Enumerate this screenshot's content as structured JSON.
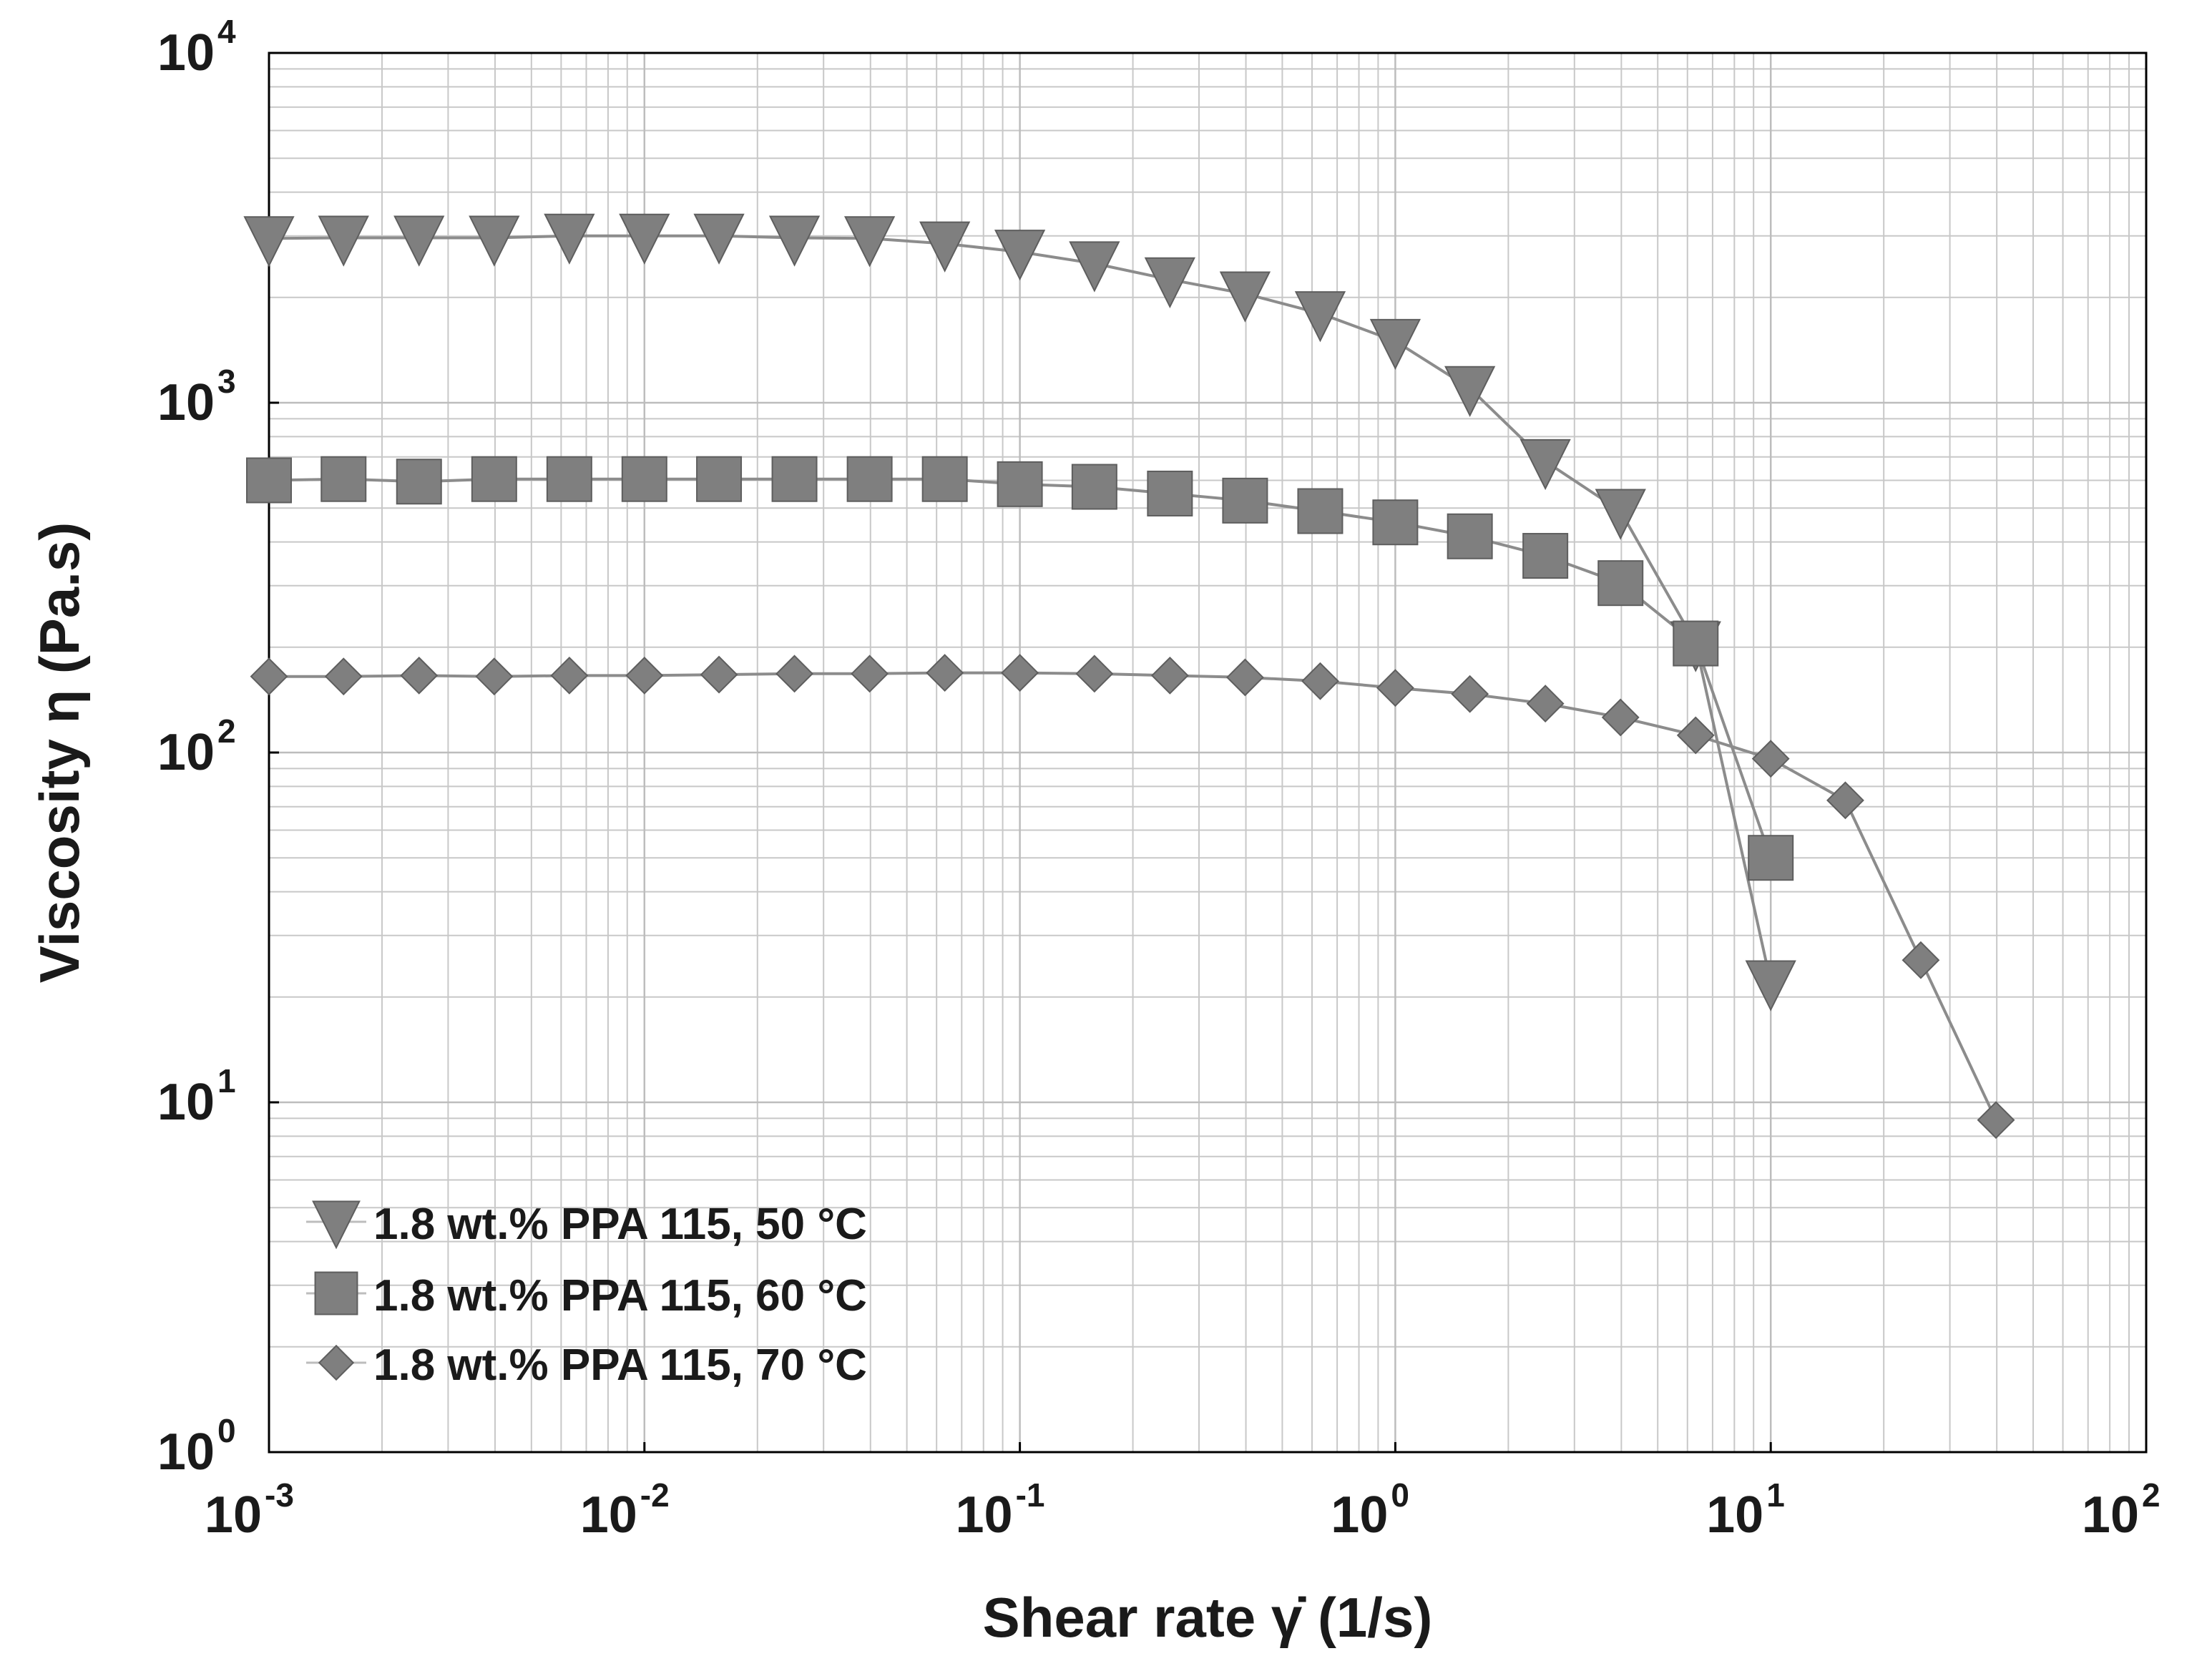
{
  "chart_data": {
    "type": "line",
    "scale": "log-log",
    "xlabel": "Shear rate  γ̇  (1/s)",
    "ylabel": "Viscosity η (Pa.s)",
    "xlim": [
      0.001,
      100
    ],
    "ylim": [
      1,
      10000
    ],
    "grid": true,
    "legend_position": "bottom-left",
    "x_ticks": [
      {
        "value": 0.001,
        "base": "10",
        "exp": "-3"
      },
      {
        "value": 0.01,
        "base": "10",
        "exp": "-2"
      },
      {
        "value": 0.1,
        "base": "10",
        "exp": "-1"
      },
      {
        "value": 1,
        "base": "10",
        "exp": "0"
      },
      {
        "value": 10,
        "base": "10",
        "exp": "1"
      },
      {
        "value": 100,
        "base": "10",
        "exp": "2"
      }
    ],
    "y_ticks": [
      {
        "value": 1,
        "base": "10",
        "exp": "0"
      },
      {
        "value": 10,
        "base": "10",
        "exp": "1"
      },
      {
        "value": 100,
        "base": "10",
        "exp": "2"
      },
      {
        "value": 1000,
        "base": "10",
        "exp": "3"
      },
      {
        "value": 10000,
        "base": "10",
        "exp": "4"
      }
    ],
    "series": [
      {
        "name": "1.8 wt.% PPA 115, 50 °C",
        "marker": "triangle-down",
        "color": "#808080",
        "x": [
          0.001,
          0.00158,
          0.00251,
          0.00398,
          0.00631,
          0.01,
          0.0158,
          0.0251,
          0.0398,
          0.0631,
          0.1,
          0.158,
          0.251,
          0.398,
          0.631,
          1,
          1.58,
          2.51,
          3.98,
          6.31,
          10
        ],
        "y": [
          2950,
          2960,
          2960,
          2960,
          3000,
          3000,
          3000,
          2960,
          2950,
          2850,
          2700,
          2500,
          2250,
          2050,
          1800,
          1500,
          1100,
          680,
          490,
          205,
          22
        ]
      },
      {
        "name": "1.8 wt.% PPA 115, 60 °C",
        "marker": "square",
        "color": "#808080",
        "x": [
          0.001,
          0.00158,
          0.00251,
          0.00398,
          0.00631,
          0.01,
          0.0158,
          0.0251,
          0.0398,
          0.0631,
          0.1,
          0.158,
          0.251,
          0.398,
          0.631,
          1,
          1.58,
          2.51,
          3.98,
          6.31,
          10
        ],
        "y": [
          600,
          605,
          595,
          605,
          605,
          605,
          605,
          605,
          605,
          605,
          585,
          575,
          550,
          525,
          490,
          455,
          415,
          365,
          305,
          205,
          50
        ]
      },
      {
        "name": "1.8 wt.% PPA 115, 70 °C",
        "marker": "diamond",
        "color": "#808080",
        "x": [
          0.001,
          0.00158,
          0.00251,
          0.00398,
          0.00631,
          0.01,
          0.0158,
          0.0251,
          0.0398,
          0.0631,
          0.1,
          0.158,
          0.251,
          0.398,
          0.631,
          1,
          1.58,
          2.51,
          3.98,
          6.31,
          10,
          15.8,
          25.1,
          39.8
        ],
        "y": [
          165,
          165,
          166,
          165,
          166,
          166,
          167,
          168,
          168,
          169,
          169,
          168,
          166,
          164,
          160,
          153,
          147,
          138,
          126,
          112,
          96,
          73,
          25.5,
          8.9
        ]
      }
    ]
  }
}
